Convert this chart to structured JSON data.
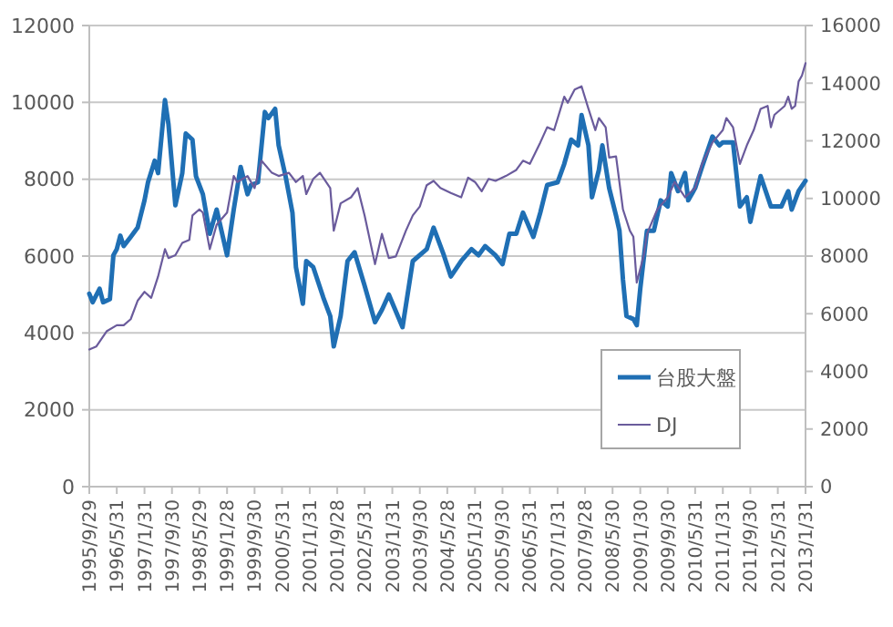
{
  "chart_data": {
    "type": "line",
    "xlim": [
      "1995-09",
      "2013-01"
    ],
    "xticks": [
      {
        "value": "1995-09",
        "label": "1995/9/29"
      },
      {
        "value": "1996-05",
        "label": "1996/5/31"
      },
      {
        "value": "1997-01",
        "label": "1997/1/31"
      },
      {
        "value": "1997-09",
        "label": "1997/9/30"
      },
      {
        "value": "1998-05",
        "label": "1998/5/29"
      },
      {
        "value": "1999-01",
        "label": "1999/1/28"
      },
      {
        "value": "1999-09",
        "label": "1999/9/30"
      },
      {
        "value": "2000-05",
        "label": "2000/5/31"
      },
      {
        "value": "2001-01",
        "label": "2001/1/31"
      },
      {
        "value": "2001-09",
        "label": "2001/9/28"
      },
      {
        "value": "2002-05",
        "label": "2002/5/31"
      },
      {
        "value": "2003-01",
        "label": "2003/1/31"
      },
      {
        "value": "2003-09",
        "label": "2003/9/30"
      },
      {
        "value": "2004-05",
        "label": "2004/5/28"
      },
      {
        "value": "2005-01",
        "label": "2005/1/31"
      },
      {
        "value": "2005-09",
        "label": "2005/9/30"
      },
      {
        "value": "2006-05",
        "label": "2006/5/31"
      },
      {
        "value": "2007-01",
        "label": "2007/1/31"
      },
      {
        "value": "2007-09",
        "label": "2007/9/28"
      },
      {
        "value": "2008-05",
        "label": "2008/5/30"
      },
      {
        "value": "2009-01",
        "label": "2009/1/30"
      },
      {
        "value": "2009-09",
        "label": "2009/9/30"
      },
      {
        "value": "2010-05",
        "label": "2010/5/31"
      },
      {
        "value": "2011-01",
        "label": "2011/1/31"
      },
      {
        "value": "2011-09",
        "label": "2011/9/30"
      },
      {
        "value": "2012-05",
        "label": "2012/5/31"
      },
      {
        "value": "2013-01",
        "label": "2013/1/31"
      }
    ],
    "ylim": [
      0,
      12000
    ],
    "yticks": [
      0,
      2000,
      4000,
      6000,
      8000,
      10000,
      12000
    ],
    "y2lim": [
      0,
      16000
    ],
    "y2ticks": [
      0,
      2000,
      4000,
      6000,
      8000,
      10000,
      12000,
      14000,
      16000
    ],
    "grid": "y",
    "legend": "bottom right",
    "marker": "none",
    "series": [
      {
        "name": "台股大盤",
        "color": "#1f6fb4",
        "x": [
          "1995-09",
          "1995-10",
          "1995-12",
          "1996-01",
          "1996-03",
          "1996-04",
          "1996-05",
          "1996-06",
          "1996-07",
          "1996-09",
          "1996-11",
          "1997-01",
          "1997-02",
          "1997-04",
          "1997-05",
          "1997-07",
          "1997-08",
          "1997-10",
          "1997-12",
          "1998-01",
          "1998-03",
          "1998-04",
          "1998-06",
          "1998-08",
          "1998-10",
          "1999-01",
          "1999-03",
          "1999-05",
          "1999-07",
          "1999-08",
          "1999-10",
          "1999-12",
          "2000-01",
          "2000-03",
          "2000-04",
          "2000-06",
          "2000-08",
          "2000-09",
          "2000-11",
          "2000-12",
          "2001-02",
          "2001-05",
          "2001-07",
          "2001-08",
          "2001-10",
          "2001-12",
          "2002-02",
          "2002-05",
          "2002-08",
          "2002-10",
          "2002-12",
          "2003-04",
          "2003-07",
          "2003-11",
          "2004-01",
          "2004-04",
          "2004-06",
          "2004-09",
          "2004-12",
          "2005-02",
          "2005-04",
          "2005-07",
          "2005-09",
          "2005-11",
          "2006-01",
          "2006-03",
          "2006-06",
          "2006-08",
          "2006-10",
          "2007-01",
          "2007-03",
          "2007-05",
          "2007-07",
          "2007-08",
          "2007-10",
          "2007-11",
          "2008-01",
          "2008-02",
          "2008-04",
          "2008-06",
          "2008-07",
          "2008-08",
          "2008-09",
          "2008-11",
          "2008-12",
          "2009-01",
          "2009-03",
          "2009-05",
          "2009-07",
          "2009-09",
          "2009-10",
          "2009-12",
          "2010-02",
          "2010-03",
          "2010-05",
          "2010-07",
          "2010-10",
          "2010-12",
          "2011-01",
          "2011-04",
          "2011-06",
          "2011-08",
          "2011-09",
          "2011-12",
          "2012-03",
          "2012-06",
          "2012-08",
          "2012-09",
          "2012-11",
          "2013-01"
        ],
        "values": [
          5020,
          4800,
          5150,
          4800,
          4880,
          6020,
          6180,
          6530,
          6260,
          6500,
          6740,
          7450,
          7920,
          8480,
          8160,
          10060,
          9430,
          7320,
          8160,
          9190,
          9030,
          8080,
          7610,
          6580,
          7210,
          6020,
          7210,
          8320,
          7610,
          7850,
          7920,
          9750,
          9590,
          9830,
          8880,
          8080,
          7130,
          5710,
          4760,
          5870,
          5710,
          4920,
          4440,
          3650,
          4440,
          5870,
          6100,
          5230,
          4280,
          4600,
          5000,
          4150,
          5870,
          6180,
          6740,
          6020,
          5470,
          5870,
          6180,
          6020,
          6260,
          6020,
          5790,
          6580,
          6580,
          7130,
          6500,
          7130,
          7850,
          7920,
          8400,
          9030,
          8880,
          9670,
          8880,
          7530,
          8240,
          8880,
          7770,
          7050,
          6660,
          5390,
          4440,
          4360,
          4200,
          5150,
          6660,
          6660,
          7450,
          7290,
          8160,
          7690,
          8160,
          7450,
          7770,
          8320,
          9110,
          8880,
          8960,
          8960,
          7290,
          7530,
          6890,
          8080,
          7290,
          7290,
          7690,
          7210,
          7690,
          7960
        ]
      },
      {
        "name": "DJ",
        "color": "#6a5b9c",
        "axis": "y2",
        "x": [
          "1995-09",
          "1995-11",
          "1996-02",
          "1996-05",
          "1996-07",
          "1996-09",
          "1996-11",
          "1997-01",
          "1997-03",
          "1997-05",
          "1997-07",
          "1997-08",
          "1997-10",
          "1997-12",
          "1998-02",
          "1998-03",
          "1998-05",
          "1998-06",
          "1998-08",
          "1998-10",
          "1999-01",
          "1999-03",
          "1999-04",
          "1999-07",
          "1999-09",
          "1999-11",
          "2000-02",
          "2000-04",
          "2000-07",
          "2000-09",
          "2000-11",
          "2000-12",
          "2001-02",
          "2001-04",
          "2001-07",
          "2001-08",
          "2001-10",
          "2002-01",
          "2002-03",
          "2002-05",
          "2002-08",
          "2002-10",
          "2002-12",
          "2003-02",
          "2003-05",
          "2003-07",
          "2003-09",
          "2003-11",
          "2004-01",
          "2004-03",
          "2004-06",
          "2004-09",
          "2004-11",
          "2005-01",
          "2005-03",
          "2005-05",
          "2005-07",
          "2005-10",
          "2006-01",
          "2006-03",
          "2006-05",
          "2006-08",
          "2006-10",
          "2006-12",
          "2007-03",
          "2007-04",
          "2007-06",
          "2007-08",
          "2007-10",
          "2007-12",
          "2008-01",
          "2008-03",
          "2008-04",
          "2008-06",
          "2008-08",
          "2008-10",
          "2008-11",
          "2008-12",
          "2009-02",
          "2009-03",
          "2009-06",
          "2009-09",
          "2009-11",
          "2010-02",
          "2010-05",
          "2010-07",
          "2010-10",
          "2011-01",
          "2011-02",
          "2011-04",
          "2011-06",
          "2011-08",
          "2011-10",
          "2011-12",
          "2012-02",
          "2012-03",
          "2012-04",
          "2012-07",
          "2012-08",
          "2012-09",
          "2012-10",
          "2012-11",
          "2012-12",
          "2013-01"
        ],
        "values": [
          4760,
          4860,
          5390,
          5600,
          5600,
          5810,
          6450,
          6760,
          6550,
          7290,
          8240,
          7930,
          8030,
          8460,
          8560,
          9410,
          9620,
          9510,
          8240,
          9090,
          9510,
          10780,
          10570,
          10780,
          10360,
          11310,
          10890,
          10780,
          10890,
          10570,
          10780,
          10150,
          10680,
          10890,
          10360,
          8880,
          9830,
          10040,
          10360,
          9410,
          7720,
          8770,
          7930,
          7990,
          8880,
          9410,
          9720,
          10460,
          10610,
          10360,
          10190,
          10040,
          10720,
          10570,
          10250,
          10680,
          10610,
          10780,
          10990,
          11310,
          11200,
          11940,
          12470,
          12370,
          13530,
          13320,
          13780,
          13890,
          13110,
          12370,
          12790,
          12470,
          11420,
          11460,
          9620,
          8880,
          8670,
          7080,
          8030,
          8770,
          9620,
          10040,
          10570,
          10040,
          10360,
          11200,
          11940,
          12370,
          12790,
          12470,
          11200,
          11840,
          12370,
          13110,
          13210,
          12470,
          12900,
          13210,
          13530,
          13110,
          13210,
          14060,
          14270,
          14690
        ]
      }
    ]
  }
}
